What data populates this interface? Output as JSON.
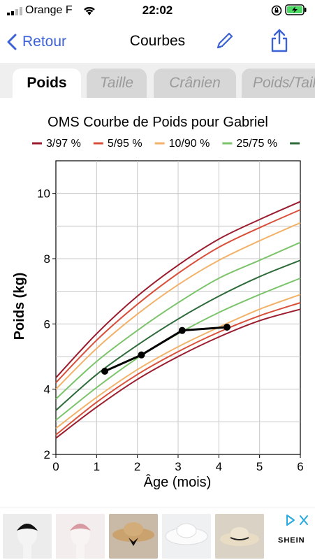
{
  "status": {
    "carrier": "Orange F",
    "time": "22:02"
  },
  "nav": {
    "back_label": "Retour",
    "title": "Courbes"
  },
  "tabs": [
    {
      "label": "Poids",
      "active": true
    },
    {
      "label": "Taille",
      "active": false
    },
    {
      "label": "Crânien",
      "active": false
    },
    {
      "label": "Poids/Taille",
      "active": false
    }
  ],
  "colors": {
    "accent": "#3b62d6",
    "p3_97": "#9b1c2e",
    "p5_95": "#d9503a",
    "p10_90": "#f2b26a",
    "p25_75": "#7cc46b",
    "p50": "#2e6b3a"
  },
  "chart_data": {
    "type": "line",
    "title": "OMS Courbe de Poids pour Gabriel",
    "xlabel": "Âge (mois)",
    "ylabel": "Poids (kg)",
    "xlim": [
      0,
      6
    ],
    "ylim": [
      2,
      11
    ],
    "xticks": [
      0,
      1,
      2,
      3,
      4,
      5,
      6
    ],
    "yticks": [
      2,
      4,
      6,
      8,
      10
    ],
    "grid": true,
    "legend": [
      "3/97 %",
      "5/95 %",
      "10/90 %",
      "25/75 %",
      ""
    ],
    "x": [
      0,
      1,
      2,
      3,
      4,
      5,
      6
    ],
    "series": [
      {
        "name": "3/97 %",
        "color": "#9b1c2e",
        "values": [
          4.35,
          5.7,
          6.85,
          7.8,
          8.6,
          9.2,
          9.75
        ]
      },
      {
        "name": "5/95 %",
        "color": "#d9503a",
        "values": [
          4.2,
          5.5,
          6.6,
          7.55,
          8.35,
          8.95,
          9.5
        ]
      },
      {
        "name": "10/90 %",
        "color": "#f2b26a",
        "values": [
          4.0,
          5.25,
          6.3,
          7.2,
          7.95,
          8.55,
          9.1
        ]
      },
      {
        "name": "25/75 %",
        "color": "#7cc46b",
        "values": [
          3.7,
          4.85,
          5.8,
          6.65,
          7.4,
          7.95,
          8.5
        ]
      },
      {
        "name": "",
        "color": "#2e6b3a",
        "values": [
          3.35,
          4.45,
          5.35,
          6.15,
          6.85,
          7.45,
          7.95
        ]
      },
      {
        "name": "25/75 %",
        "color": "#7cc46b",
        "values": [
          3.05,
          4.05,
          4.95,
          5.7,
          6.35,
          6.9,
          7.4
        ]
      },
      {
        "name": "10/90 %",
        "color": "#f2b26a",
        "values": [
          2.8,
          3.75,
          4.6,
          5.3,
          5.9,
          6.45,
          6.9
        ]
      },
      {
        "name": "5/95 %",
        "color": "#d9503a",
        "values": [
          2.6,
          3.6,
          4.45,
          5.15,
          5.75,
          6.25,
          6.65
        ]
      },
      {
        "name": "3/97 %",
        "color": "#9b1c2e",
        "values": [
          2.5,
          3.45,
          4.3,
          5.0,
          5.6,
          6.1,
          6.45
        ]
      }
    ],
    "measurements": {
      "x": [
        1.2,
        2.1,
        3.1,
        4.2
      ],
      "y": [
        4.55,
        5.05,
        5.8,
        5.9
      ]
    }
  }
}
